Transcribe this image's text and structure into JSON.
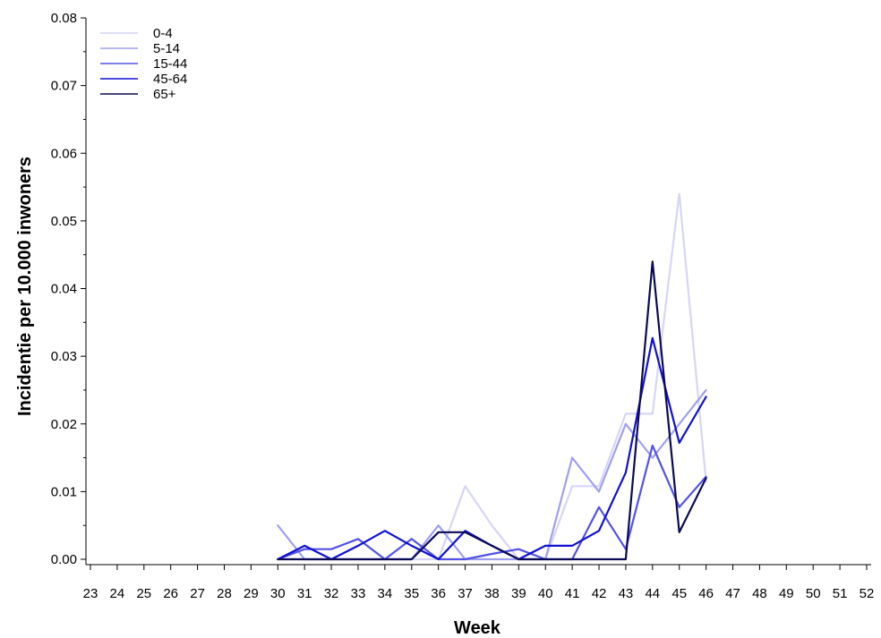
{
  "chart_data": {
    "type": "line",
    "title": "",
    "xlabel": "Week",
    "ylabel": "Incidentie per 10.000 inwoners",
    "x": [
      23,
      24,
      25,
      26,
      27,
      28,
      29,
      30,
      31,
      32,
      33,
      34,
      35,
      36,
      37,
      38,
      39,
      40,
      41,
      42,
      43,
      44,
      45,
      46,
      47,
      48,
      49,
      50,
      51,
      52
    ],
    "x_tick_labels": [
      "23",
      "24",
      "25",
      "26",
      "27",
      "28",
      "29",
      "30",
      "31",
      "32",
      "33",
      "34",
      "35",
      "36",
      "37",
      "38",
      "39",
      "40",
      "41",
      "42",
      "43",
      "44",
      "45",
      "46",
      "47",
      "48",
      "49",
      "50",
      "51",
      "52"
    ],
    "xlim": [
      23,
      52
    ],
    "ylim": [
      0,
      0.08
    ],
    "y_ticks": [
      0,
      0.01,
      0.02,
      0.03,
      0.04,
      0.05,
      0.06,
      0.07,
      0.08
    ],
    "y_tick_labels": [
      "0.00",
      "0.01",
      "0.02",
      "0.03",
      "0.04",
      "0.05",
      "0.06",
      "0.07",
      "0.08"
    ],
    "grid": false,
    "legend_position": "top-left",
    "series": [
      {
        "name": "0-4",
        "color": "#d6d6f5",
        "x": [
          30,
          31,
          32,
          33,
          34,
          35,
          36,
          37,
          38,
          39,
          40,
          41,
          42,
          43,
          44,
          45,
          46
        ],
        "values": [
          0,
          0,
          0,
          0,
          0,
          0,
          0,
          0.0108,
          0.005,
          0,
          0,
          0.0108,
          0.0108,
          0.0215,
          0.0215,
          0.054,
          0.0115
        ]
      },
      {
        "name": "5-14",
        "color": "#9f9ff0",
        "x": [
          30,
          31,
          32,
          33,
          34,
          35,
          36,
          37,
          38,
          39,
          40,
          41,
          42,
          43,
          44,
          45,
          46
        ],
        "values": [
          0.005,
          0,
          0,
          0,
          0,
          0,
          0.005,
          0,
          0,
          0,
          0,
          0.015,
          0.01,
          0.02,
          0.015,
          0.02,
          0.025
        ]
      },
      {
        "name": "15-44",
        "color": "#5252e6",
        "x": [
          30,
          31,
          32,
          33,
          34,
          35,
          36,
          37,
          38,
          39,
          40,
          41,
          42,
          43,
          44,
          45,
          46
        ],
        "values": [
          0,
          0.0015,
          0.0015,
          0.003,
          0,
          0.003,
          0,
          0,
          0.0008,
          0.0015,
          0,
          0,
          0.0077,
          0.0015,
          0.0168,
          0.0077,
          0.0122
        ]
      },
      {
        "name": "45-64",
        "color": "#1010d0",
        "x": [
          30,
          31,
          32,
          33,
          34,
          35,
          36,
          37,
          38,
          39,
          40,
          41,
          42,
          43,
          44,
          45,
          46
        ],
        "values": [
          0,
          0.002,
          0,
          0.002,
          0.0042,
          0.002,
          0,
          0.0042,
          0.002,
          0,
          0.002,
          0.002,
          0.0042,
          0.0128,
          0.0327,
          0.0172,
          0.024
        ]
      },
      {
        "name": "65+",
        "color": "#0a0a55",
        "x": [
          30,
          31,
          32,
          33,
          34,
          35,
          36,
          37,
          38,
          39,
          40,
          41,
          42,
          43,
          44,
          45,
          46
        ],
        "values": [
          0,
          0,
          0,
          0,
          0,
          0,
          0.004,
          0.004,
          0.002,
          0,
          0,
          0,
          0,
          0,
          0.044,
          0.004,
          0.012
        ]
      }
    ]
  }
}
